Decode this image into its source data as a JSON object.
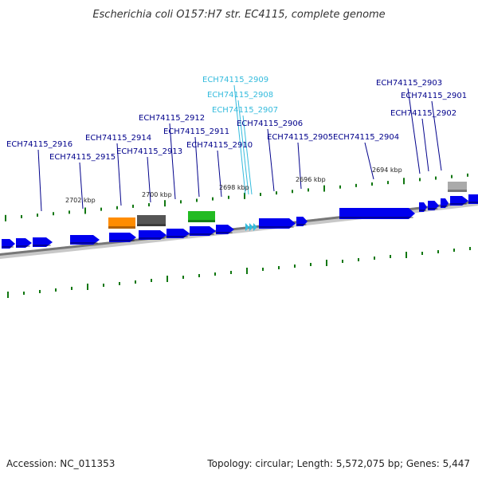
{
  "header": {
    "title": "Escherichia coli O157:H7 str. EC4115, complete genome"
  },
  "footer": {
    "accession": "Accession: NC_011353",
    "summary": "Topology: circular; Length: 5,572,075 bp; Genes: 5,447"
  },
  "colors": {
    "gene_label": "#00008b",
    "gene_label_highlight": "#33bbdd",
    "cds": "#0000ee",
    "trna": "#ff8c00",
    "rrna": "#555555",
    "misc_rna": "#22bb22",
    "pseudogene": "#aaaaaa",
    "backbone": "#777777",
    "tick": "#117711"
  },
  "scale_labels": [
    "2702 kbp",
    "2700 kbp",
    "2698 kbp",
    "2696 kbp",
    "2694 kbp"
  ],
  "gene_labels": [
    {
      "id": "ECH74115_2916",
      "style": "normal"
    },
    {
      "id": "ECH74115_2915",
      "style": "normal"
    },
    {
      "id": "ECH74115_2914",
      "style": "normal"
    },
    {
      "id": "ECH74115_2913",
      "style": "normal"
    },
    {
      "id": "ECH74115_2912",
      "style": "normal"
    },
    {
      "id": "ECH74115_2911",
      "style": "normal"
    },
    {
      "id": "ECH74115_2910",
      "style": "normal"
    },
    {
      "id": "ECH74115_2909",
      "style": "highlight"
    },
    {
      "id": "ECH74115_2908",
      "style": "highlight"
    },
    {
      "id": "ECH74115_2907",
      "style": "highlight"
    },
    {
      "id": "ECH74115_2906",
      "style": "normal"
    },
    {
      "id": "ECH74115_2905",
      "style": "normal"
    },
    {
      "id": "ECH74115_2904",
      "style": "normal"
    },
    {
      "id": "ECH74115_2903",
      "style": "normal"
    },
    {
      "id": "ECH74115_2902",
      "style": "normal"
    },
    {
      "id": "ECH74115_2901",
      "style": "normal"
    }
  ]
}
